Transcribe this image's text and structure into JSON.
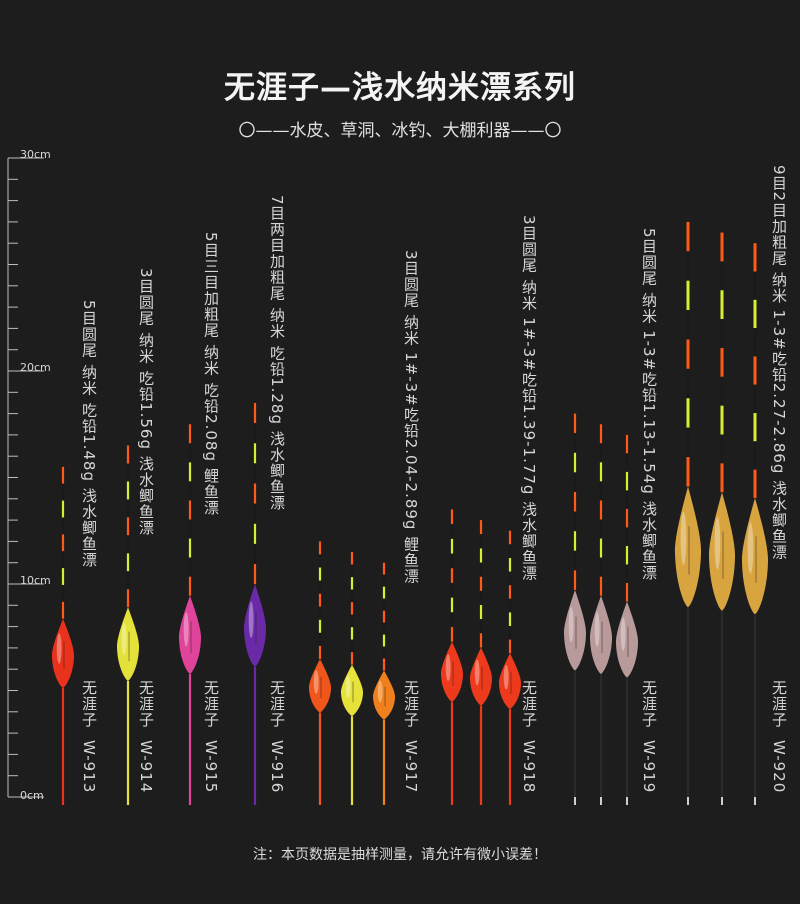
{
  "title": "无涯子—浅水纳米漂系列",
  "subtitle": "〇——水皮、草洞、冰钓、大棚利器——〇",
  "note": "注：本页数据是抽样测量，请允许有微小误差！",
  "ruler": {
    "unit": "cm",
    "max_cm": 30,
    "labels": [
      "30cm",
      "20cm",
      "10cm",
      "0cm"
    ]
  },
  "products": [
    {
      "code": "W-913",
      "brand": "无涯子",
      "spec": "5目圆尾 纳米 吃铅1.48g 浅水鲫鱼漂",
      "floats": [
        {
          "color": "#e8321c",
          "total_cm": 15.5
        }
      ]
    },
    {
      "code": "W-914",
      "brand": "无涯子",
      "spec": "3目圆尾 纳米 吃铅1.56g 浅水鲫鱼漂",
      "floats": [
        {
          "color": "#e4e23a",
          "total_cm": 16.5
        }
      ]
    },
    {
      "code": "W-915",
      "brand": "无涯子",
      "spec": "5目三目加粗尾 纳米 吃铅2.08g 鲤鱼漂",
      "floats": [
        {
          "color": "#e0439a",
          "total_cm": 17.5
        }
      ]
    },
    {
      "code": "W-916",
      "brand": "无涯子",
      "spec": "7目两目加粗尾 纳米 吃铅1.28g 浅水鲫鱼漂",
      "floats": [
        {
          "color": "#6a2aa8",
          "total_cm": 18.5
        }
      ]
    },
    {
      "code": "W-917",
      "brand": "无涯子",
      "spec": "3目圆尾 纳米 1#-3#吃铅2.04-2.89g 鲤鱼漂",
      "floats": [
        {
          "color": "#f0561c",
          "total_cm": 12
        },
        {
          "color": "#e6e23a",
          "total_cm": 11.5
        },
        {
          "color": "#f0801c",
          "total_cm": 11
        }
      ]
    },
    {
      "code": "W-918",
      "brand": "无涯子",
      "spec": "3目圆尾 纳米 1#-3#吃铅1.39-1.77g 浅水鲫鱼漂",
      "floats": [
        {
          "color": "#ee3a1c",
          "total_cm": 13.5
        },
        {
          "color": "#ee3a1c",
          "total_cm": 13
        },
        {
          "color": "#ee3a1c",
          "total_cm": 12.5
        }
      ]
    },
    {
      "code": "W-919",
      "brand": "无涯子",
      "spec": "5目圆尾 纳米 1-3#吃铅1.13-1.54g 浅水鲫鱼漂",
      "floats": [
        {
          "color": "#b89a9a",
          "total_cm": 18
        },
        {
          "color": "#b89a9a",
          "total_cm": 17.5
        },
        {
          "color": "#b89a9a",
          "total_cm": 17
        }
      ]
    },
    {
      "code": "W-920",
      "brand": "无涯子",
      "spec": "9目2目加粗尾 纳米 1-3#吃铅2.27-2.86g 浅水鲫鱼漂",
      "floats": [
        {
          "color": "#d8a440",
          "total_cm": 27
        },
        {
          "color": "#d8a440",
          "total_cm": 26.5
        },
        {
          "color": "#d8a440",
          "total_cm": 26
        }
      ]
    }
  ]
}
